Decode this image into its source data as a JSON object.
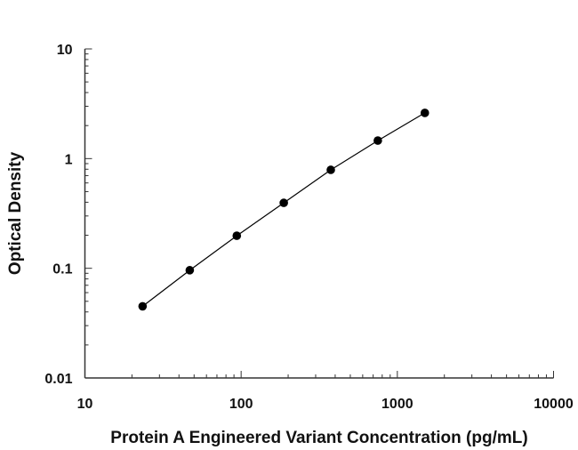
{
  "chart_data": {
    "type": "scatter",
    "title": "",
    "xlabel": "Protein A Engineered Variant Concentration (pg/mL)",
    "ylabel": "Optical Density",
    "xscale": "log",
    "yscale": "log",
    "xlim": [
      10,
      10000
    ],
    "ylim": [
      0.01,
      10
    ],
    "xticks": [
      "10",
      "100",
      "1000",
      "10000"
    ],
    "yticks": [
      "0.01",
      "0.1",
      "1",
      "10"
    ],
    "grid": false,
    "fit_line": true,
    "colors": {
      "marker": "#000000",
      "line": "#000000",
      "axis": "#333333"
    },
    "series": [
      {
        "x": [
          23.4,
          46.9,
          93.8,
          187.5,
          375,
          750,
          1500
        ],
        "y": [
          0.045,
          0.096,
          0.198,
          0.395,
          0.79,
          1.46,
          2.61
        ]
      }
    ]
  }
}
